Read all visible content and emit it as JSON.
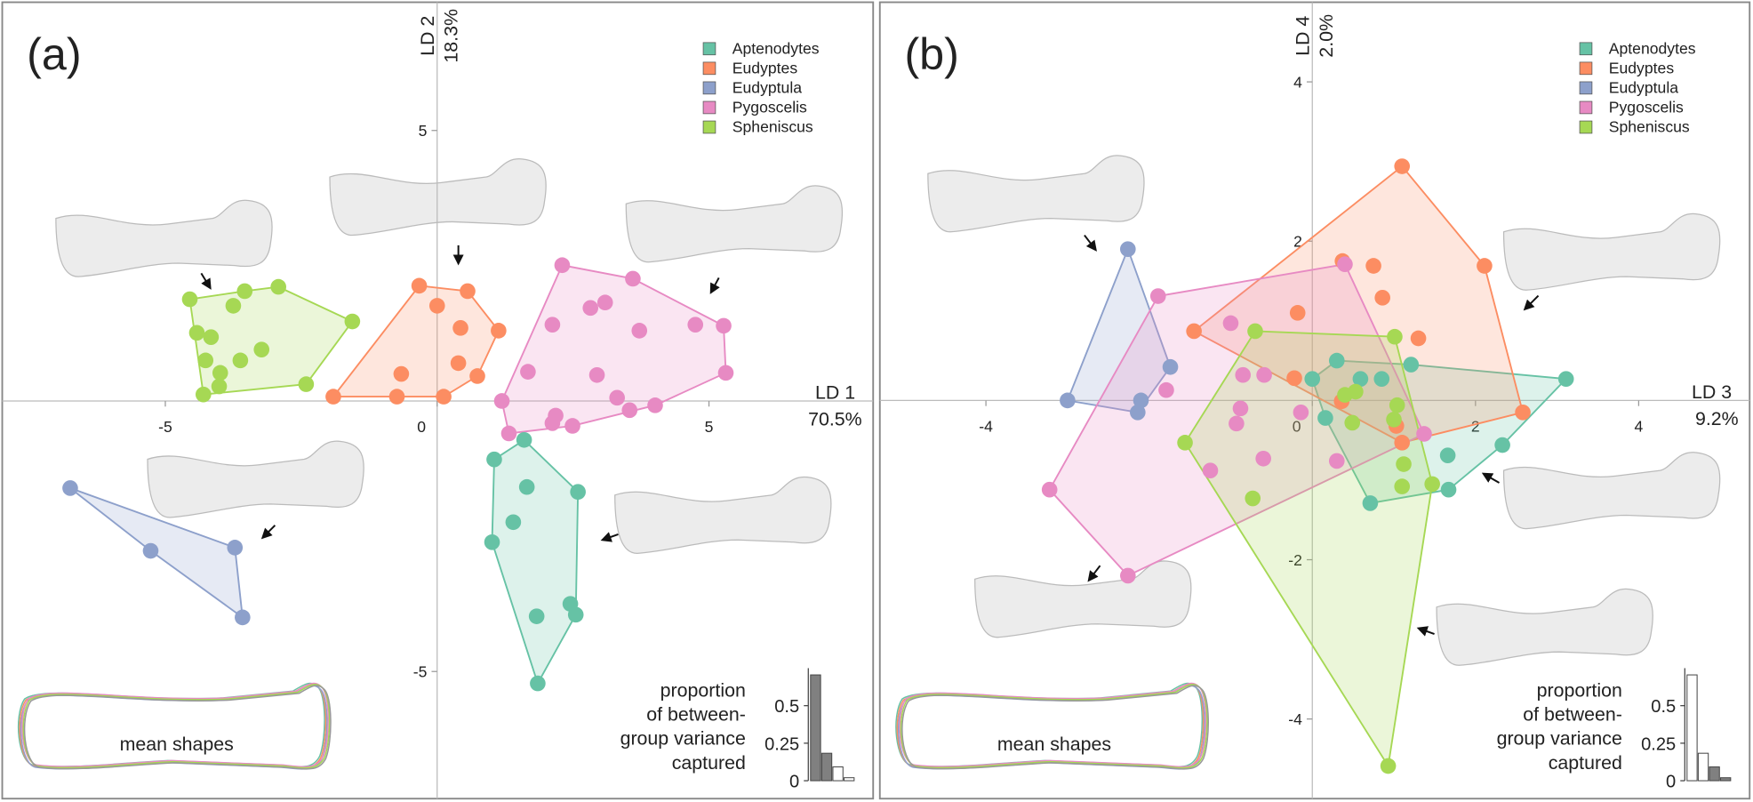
{
  "chart_data": [
    {
      "type": "scatter",
      "panel": "(a)",
      "xlabel": [
        "LD 1",
        "70.5%"
      ],
      "ylabel": [
        "LD 2",
        "18.3%"
      ],
      "xlim": [
        -8,
        8.02
      ],
      "ylim": [
        -7.35,
        7.37
      ],
      "xticks": [
        -5,
        0,
        5
      ],
      "yticks": [
        5,
        -5
      ],
      "legend": "upper right",
      "series": [
        {
          "name": "Aptenodytes",
          "color": "#66c2a5",
          "x": [
            1.6,
            1.05,
            1.65,
            2.59,
            1.4,
            1.01,
            2.45,
            2.55,
            1.83,
            1.85
          ],
          "y": [
            -0.72,
            -1.08,
            -1.59,
            -1.68,
            -2.24,
            -2.61,
            -3.75,
            -3.95,
            -3.98,
            -5.22
          ]
        },
        {
          "name": "Eudyptes",
          "color": "#fc8d62",
          "x": [
            -0.33,
            0,
            0.56,
            1.13,
            0.43,
            0.39,
            0.74,
            -0.66,
            -0.74,
            0.12,
            -1.91
          ],
          "y": [
            2.13,
            1.76,
            2.03,
            1.3,
            1.35,
            0.7,
            0.46,
            0.5,
            0.08,
            0.08,
            0.08
          ]
        },
        {
          "name": "Eudyptula",
          "color": "#8da0cb",
          "x": [
            -6.75,
            -5.27,
            -3.72,
            -3.58
          ],
          "y": [
            -1.61,
            -2.77,
            -2.71,
            -4.0
          ]
        },
        {
          "name": "Pygoscelis",
          "color": "#e78ac3",
          "x": [
            2.3,
            3.6,
            3.09,
            2.82,
            2.12,
            3.72,
            4.75,
            5.27,
            5.31,
            2.94,
            1.67,
            1.19,
            3.31,
            4.01,
            3.54,
            2.18,
            2.12,
            2.49,
            1.32
          ],
          "y": [
            2.51,
            2.26,
            1.82,
            1.72,
            1.41,
            1.3,
            1.41,
            1.39,
            0.52,
            0.48,
            0.54,
            0,
            0.06,
            -0.08,
            -0.17,
            -0.27,
            -0.41,
            -0.46,
            -0.6
          ]
        },
        {
          "name": "Spheniscus",
          "color": "#a6d854",
          "x": [
            -4.55,
            -3.54,
            -2.92,
            -3.75,
            -1.56,
            -4.42,
            -4.16,
            -3.23,
            -3.62,
            -4.26,
            -3.99,
            -4.01,
            -4.3,
            -2.41
          ],
          "y": [
            1.88,
            2.03,
            2.11,
            1.76,
            1.47,
            1.26,
            1.18,
            0.95,
            0.75,
            0.75,
            0.52,
            0.27,
            0.12,
            0.31
          ]
        }
      ],
      "mean_shapes": "mean shapes",
      "inset": {
        "type": "bar",
        "values": [
          0.705,
          0.183,
          0.092,
          0.02
        ],
        "colors": [
          "#808080",
          "#808080",
          "#ffffff",
          "#ffffff"
        ],
        "ylim": [
          0,
          0.75
        ],
        "yticks": [
          0,
          0.25,
          0.5
        ],
        "label": [
          "proportion",
          "of between-",
          "group variance",
          "captured"
        ]
      }
    },
    {
      "type": "scatter",
      "panel": "(b)",
      "xlabel": [
        "LD 3",
        "9.2%"
      ],
      "ylabel": [
        "LD 4",
        "2.0%"
      ],
      "xlim": [
        -5.3,
        5.36
      ],
      "ylim": [
        -5,
        5
      ],
      "xticks": [
        -4,
        0,
        2,
        4
      ],
      "yticks": [
        4,
        2,
        -2,
        -4
      ],
      "legend": "upper right",
      "series": [
        {
          "name": "Aptenodytes",
          "color": "#66c2a5",
          "x": [
            3.11,
            1.21,
            0,
            0.59,
            0.3,
            0.85,
            0.16,
            2.33,
            1.66,
            1.67,
            0.71
          ],
          "y": [
            0.27,
            0.45,
            0.27,
            0.27,
            0.5,
            0.27,
            -0.22,
            -0.56,
            -0.69,
            -1.12,
            -1.29
          ]
        },
        {
          "name": "Eudyptes",
          "color": "#fc8d62",
          "x": [
            1.1,
            2.11,
            0.37,
            0.75,
            0.86,
            1.3,
            -0.18,
            -1.45,
            -0.22,
            0.36,
            1.03,
            2.58,
            1.1
          ],
          "y": [
            2.94,
            1.69,
            1.75,
            1.69,
            1.29,
            0.78,
            1.1,
            0.87,
            0.28,
            -0.01,
            -0.32,
            -0.15,
            -0.53
          ]
        },
        {
          "name": "Eudyptula",
          "color": "#8da0cb",
          "x": [
            -2.26,
            -1.74,
            -2.1,
            -2.14,
            -3.0
          ],
          "y": [
            1.9,
            0.42,
            0,
            -0.15,
            0
          ]
        },
        {
          "name": "Pygoscelis",
          "color": "#e78ac3",
          "x": [
            0.4,
            -1.89,
            -1.0,
            -1.79,
            -0.85,
            -0.59,
            -0.88,
            -0.93,
            -0.14,
            1.37,
            0.3,
            -0.6,
            -1.25,
            -3.22,
            -2.26
          ],
          "y": [
            1.71,
            1.31,
            0.97,
            0.13,
            0.32,
            0.32,
            -0.1,
            -0.29,
            -0.15,
            -0.42,
            -0.76,
            -0.73,
            -0.88,
            -1.12,
            -2.2
          ]
        },
        {
          "name": "Spheniscus",
          "color": "#a6d854",
          "x": [
            -0.7,
            1.01,
            0.4,
            0.53,
            1.04,
            1.0,
            0.49,
            -1.56,
            1.12,
            1.1,
            1.47,
            -0.73,
            0.93
          ],
          "y": [
            0.87,
            0.8,
            0.07,
            0.11,
            -0.06,
            -0.24,
            -0.28,
            -0.53,
            -0.8,
            -1.08,
            -1.05,
            -1.23,
            -4.59
          ]
        }
      ],
      "mean_shapes": "mean shapes",
      "inset": {
        "type": "bar",
        "values": [
          0.705,
          0.183,
          0.092,
          0.02
        ],
        "colors": [
          "#ffffff",
          "#ffffff",
          "#808080",
          "#808080"
        ],
        "ylim": [
          0,
          0.75
        ],
        "yticks": [
          0,
          0.25,
          0.5
        ],
        "label": [
          "proportion",
          "of between-",
          "group variance",
          "captured"
        ]
      }
    }
  ]
}
